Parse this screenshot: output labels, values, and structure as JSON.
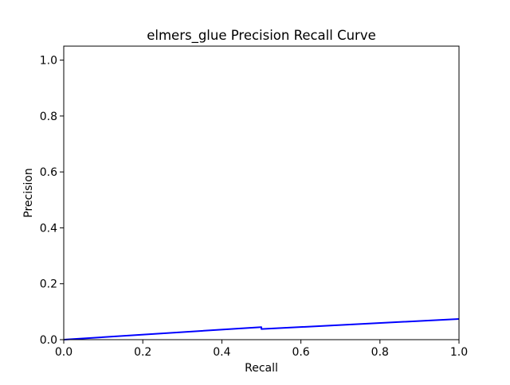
{
  "chart_data": {
    "type": "line",
    "title": "elmers_glue Precision Recall Curve",
    "xlabel": "Recall",
    "ylabel": "Precision",
    "xlim": [
      0.0,
      1.0
    ],
    "ylim": [
      0.0,
      1.05
    ],
    "x_ticks": [
      "0.0",
      "0.2",
      "0.4",
      "0.6",
      "0.8",
      "1.0"
    ],
    "y_ticks": [
      "0.0",
      "0.2",
      "0.4",
      "0.6",
      "0.8",
      "1.0"
    ],
    "grid": false,
    "series": [
      {
        "color": "#0000ff",
        "x": [
          0.0,
          0.5,
          0.5,
          1.0
        ],
        "y": [
          0.0,
          0.045,
          0.038,
          0.074
        ]
      }
    ]
  }
}
